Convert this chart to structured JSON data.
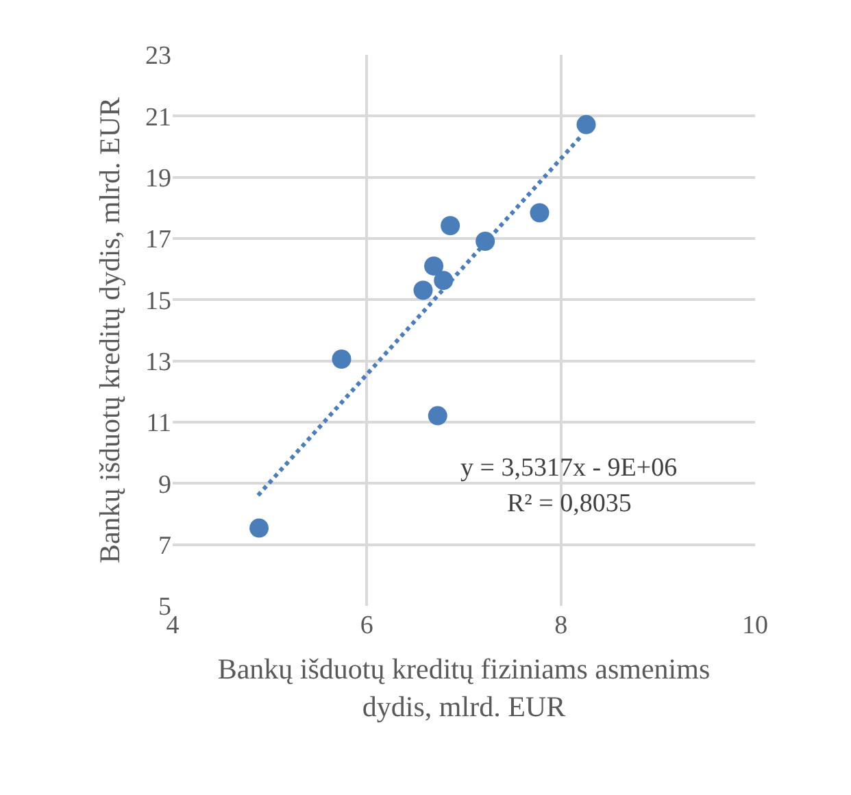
{
  "chart_data": {
    "type": "scatter",
    "xlabel": "Bankų išduotų kreditų fiziniams asmenims\ndydis, mlrd. EUR",
    "ylabel": "Bankų išduotų kreditų dydis, mlrd. EUR",
    "x": [
      4.89,
      5.74,
      6.73,
      6.58,
      6.69,
      6.79,
      6.86,
      7.22,
      7.78,
      8.26
    ],
    "series": [
      {
        "color": "#4a7ebb",
        "values": [
          7.54,
          13.06,
          11.21,
          15.31,
          16.1,
          15.63,
          17.42,
          16.91,
          17.84,
          20.72
        ],
        "marker": "circle"
      },
      {
        "type": "line",
        "color": "#4a7ebb",
        "x": [
          4.88,
          8.21
        ],
        "values": [
          8.61,
          20.35
        ],
        "line_style": "dotted",
        "marker": "none"
      }
    ],
    "annotations": [
      "y = 3,5317x - 9E+06",
      "R² = 0,8035"
    ],
    "xlim": [
      4,
      10
    ],
    "xticks": [
      4,
      6,
      8,
      10
    ],
    "ylim": [
      5,
      23
    ],
    "yticks": [
      5,
      7,
      9,
      11,
      13,
      15,
      17,
      19,
      21,
      23
    ],
    "grid": true
  }
}
